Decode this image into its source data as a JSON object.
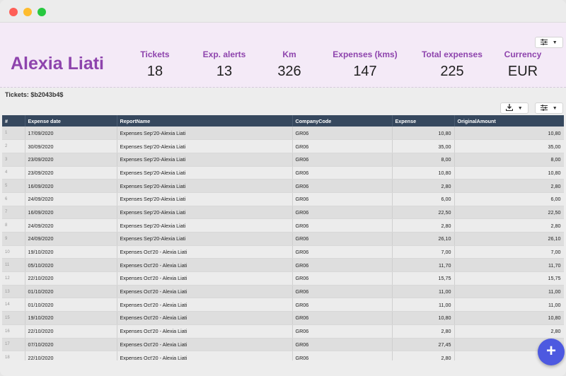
{
  "user": {
    "name": "Alexia Liati"
  },
  "stats": [
    {
      "label": "Tickets",
      "value": "18"
    },
    {
      "label": "Exp. alerts",
      "value": "13"
    },
    {
      "label": "Km",
      "value": "326"
    },
    {
      "label": "Expenses (kms)",
      "value": "147"
    },
    {
      "label": "Total expenses",
      "value": "225"
    },
    {
      "label": "Currency",
      "value": "EUR"
    }
  ],
  "tickets_label": "Tickets: $b2043b4$",
  "table": {
    "columns": [
      "#",
      "Expense date",
      "ReportName",
      "CompanyCode",
      "Expense",
      "OriginalAmount"
    ],
    "rows": [
      [
        "1",
        "17/09/2020",
        "Expenses Sep'20-Alexia Liati",
        "GR06",
        "10,80",
        "10,80"
      ],
      [
        "2",
        "30/09/2020",
        "Expenses Sep'20-Alexia Liati",
        "GR06",
        "35,00",
        "35,00"
      ],
      [
        "3",
        "23/09/2020",
        "Expenses Sep'20-Alexia Liati",
        "GR06",
        "8,00",
        "8,00"
      ],
      [
        "4",
        "23/09/2020",
        "Expenses Sep'20-Alexia Liati",
        "GR06",
        "10,80",
        "10,80"
      ],
      [
        "5",
        "16/09/2020",
        "Expenses Sep'20-Alexia Liati",
        "GR06",
        "2,80",
        "2,80"
      ],
      [
        "6",
        "24/09/2020",
        "Expenses Sep'20-Alexia Liati",
        "GR06",
        "6,00",
        "6,00"
      ],
      [
        "7",
        "16/09/2020",
        "Expenses Sep'20-Alexia Liati",
        "GR06",
        "22,50",
        "22,50"
      ],
      [
        "8",
        "24/09/2020",
        "Expenses Sep'20-Alexia Liati",
        "GR06",
        "2,80",
        "2,80"
      ],
      [
        "9",
        "24/09/2020",
        "Expenses Sep'20-Alexia Liati",
        "GR06",
        "26,10",
        "26,10"
      ],
      [
        "10",
        "19/10/2020",
        "Expenses Oct'20 - Alexia Liati",
        "GR06",
        "7,00",
        "7,00"
      ],
      [
        "11",
        "05/10/2020",
        "Expenses Oct'20 - Alexia Liati",
        "GR06",
        "11,70",
        "11,70"
      ],
      [
        "12",
        "22/10/2020",
        "Expenses Oct'20 - Alexia Liati",
        "GR06",
        "15,75",
        "15,75"
      ],
      [
        "13",
        "01/10/2020",
        "Expenses Oct'20 - Alexia Liati",
        "GR06",
        "11,00",
        "11,00"
      ],
      [
        "14",
        "01/10/2020",
        "Expenses Oct'20 - Alexia Liati",
        "GR06",
        "11,00",
        "11,00"
      ],
      [
        "15",
        "19/10/2020",
        "Expenses Oct'20 - Alexia Liati",
        "GR06",
        "10,80",
        "10,80"
      ],
      [
        "16",
        "22/10/2020",
        "Expenses Oct'20 - Alexia Liati",
        "GR06",
        "2,80",
        "2,80"
      ],
      [
        "17",
        "07/10/2020",
        "Expenses Oct'20 - Alexia Liati",
        "GR06",
        "27,45",
        ""
      ],
      [
        "18",
        "22/10/2020",
        "Expenses Oct'20 - Alexia Liati",
        "GR06",
        "2,80",
        ""
      ]
    ]
  },
  "icons": {
    "settings": "sliders-icon",
    "download": "download-icon",
    "dropdown": "chevron-down-icon",
    "fab": "plus-icon"
  },
  "colors": {
    "accent": "#8e44ad",
    "header_bg": "#f4eaf7",
    "table_header_bg": "#36485e",
    "fab_bg": "#4d59e0"
  }
}
